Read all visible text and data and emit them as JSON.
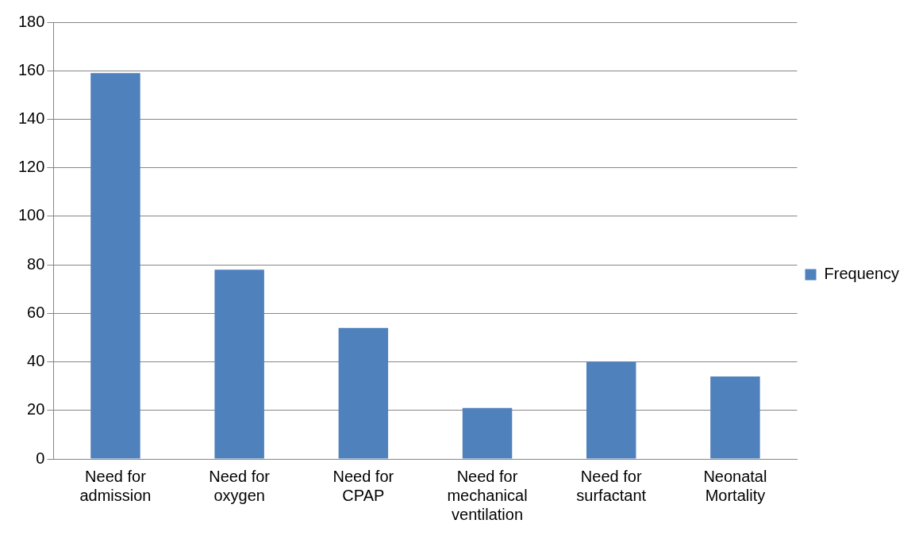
{
  "chart_data": {
    "type": "bar",
    "categories": [
      "Need for admission",
      "Need for oxygen",
      "Need for CPAP",
      "Need for mechanical ventilation",
      "Need for surfactant",
      "Neonatal Mortality"
    ],
    "series": [
      {
        "name": "Frequency",
        "color": "#4f81bd",
        "values": [
          159,
          78,
          54,
          21,
          40,
          34
        ]
      }
    ],
    "ylim": [
      0,
      180
    ],
    "yticks": [
      0,
      20,
      40,
      60,
      80,
      100,
      120,
      140,
      160,
      180
    ],
    "grid": "y",
    "legend": "right"
  }
}
